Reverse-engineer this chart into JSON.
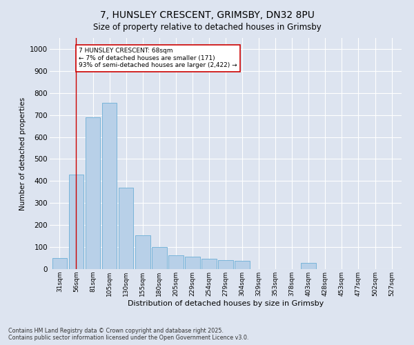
{
  "title": "7, HUNSLEY CRESCENT, GRIMSBY, DN32 8PU",
  "subtitle": "Size of property relative to detached houses in Grimsby",
  "xlabel": "Distribution of detached houses by size in Grimsby",
  "ylabel": "Number of detached properties",
  "categories": [
    "31sqm",
    "56sqm",
    "81sqm",
    "105sqm",
    "130sqm",
    "155sqm",
    "180sqm",
    "205sqm",
    "229sqm",
    "254sqm",
    "279sqm",
    "304sqm",
    "329sqm",
    "353sqm",
    "378sqm",
    "403sqm",
    "428sqm",
    "453sqm",
    "477sqm",
    "502sqm",
    "527sqm"
  ],
  "values": [
    50,
    430,
    690,
    755,
    370,
    155,
    100,
    62,
    55,
    48,
    40,
    38,
    0,
    0,
    0,
    28,
    0,
    0,
    0,
    0,
    0
  ],
  "bar_color": "#b8d0e8",
  "bar_edge_color": "#6baed6",
  "background_color": "#dde4f0",
  "grid_color": "#ffffff",
  "vline_x": 1.0,
  "vline_color": "#cc0000",
  "annotation_text": "7 HUNSLEY CRESCENT: 68sqm\n← 7% of detached houses are smaller (171)\n93% of semi-detached houses are larger (2,422) →",
  "annotation_box_facecolor": "#ffffff",
  "annotation_box_edgecolor": "#cc0000",
  "ylim": [
    0,
    1050
  ],
  "yticks": [
    0,
    100,
    200,
    300,
    400,
    500,
    600,
    700,
    800,
    900,
    1000
  ],
  "footer": "Contains HM Land Registry data © Crown copyright and database right 2025.\nContains public sector information licensed under the Open Government Licence v3.0."
}
